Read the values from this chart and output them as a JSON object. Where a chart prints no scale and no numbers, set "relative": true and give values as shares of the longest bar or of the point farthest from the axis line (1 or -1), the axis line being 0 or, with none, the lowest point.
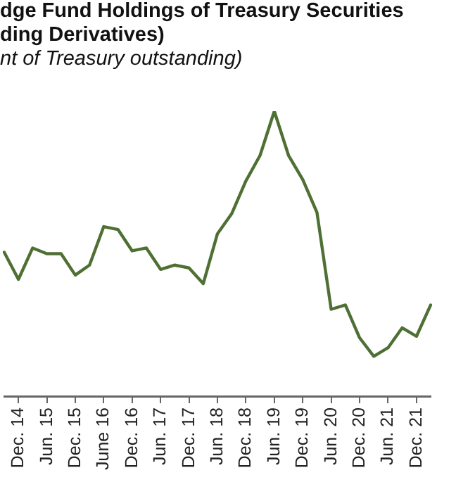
{
  "chart_data": {
    "type": "line",
    "title": "dge Fund Holdings of Treasury Securities\nding Derivatives)",
    "subtitle": "nt of Treasury outstanding)",
    "relative": true,
    "categories": [
      null,
      "Dec. 14",
      null,
      "Jun. 15",
      null,
      "Dec. 15",
      null,
      "June 16",
      null,
      "Dec. 16",
      null,
      "Jun. 17",
      null,
      "Dec. 17",
      null,
      "Jun. 18",
      null,
      "Dec. 18",
      null,
      "Jun. 19",
      null,
      "Dec. 19",
      null,
      "Jun. 20",
      null,
      "Dec. 20",
      null,
      "Jun. 21",
      null,
      "Dec. 21",
      null
    ],
    "series": [
      {
        "color": "#4f7034",
        "values": [
          0.505,
          0.41,
          0.52,
          0.5,
          0.5,
          0.425,
          0.46,
          0.595,
          0.585,
          0.51,
          0.52,
          0.445,
          0.46,
          0.45,
          0.395,
          0.57,
          0.64,
          0.755,
          0.845,
          1,
          0.845,
          0.76,
          0.645,
          0.305,
          0.32,
          0.205,
          0.14,
          0.17,
          0.24,
          0.21,
          0.32
        ]
      }
    ],
    "grid": false,
    "legend": false,
    "marker": "none",
    "line_style": "solid"
  }
}
